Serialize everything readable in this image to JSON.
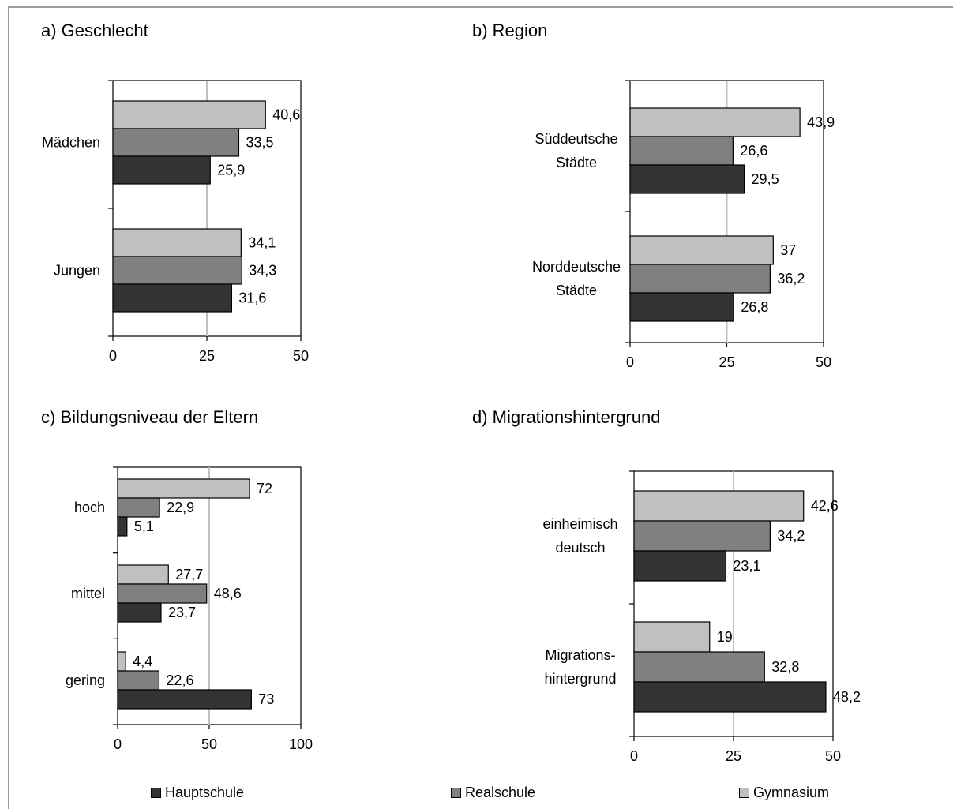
{
  "chart_data": [
    {
      "type": "bar",
      "orientation": "horizontal",
      "title": "a) Geschlecht",
      "categories": [
        "Mädchen",
        "Jungen"
      ],
      "series": [
        {
          "name": "Gymnasium",
          "values": [
            40.6,
            34.1
          ]
        },
        {
          "name": "Realschule",
          "values": [
            33.5,
            34.3
          ]
        },
        {
          "name": "Hauptschule",
          "values": [
            25.9,
            31.6
          ]
        }
      ],
      "value_labels": [
        [
          "40,6",
          "34,1"
        ],
        [
          "33,5",
          "34,3"
        ],
        [
          "25,9",
          "31,6"
        ]
      ],
      "xlim": [
        0,
        50
      ],
      "xticks": [
        "0",
        "25",
        "50"
      ],
      "grid": "vertical line at 25"
    },
    {
      "type": "bar",
      "orientation": "horizontal",
      "title": "b) Region",
      "categories": [
        "Süddeutsche Städte",
        "Norddeutsche Städte"
      ],
      "category_lines": [
        [
          "Süddeutsche",
          "Städte"
        ],
        [
          "Norddeutsche",
          "Städte"
        ]
      ],
      "series": [
        {
          "name": "Gymnasium",
          "values": [
            43.9,
            37
          ]
        },
        {
          "name": "Realschule",
          "values": [
            26.6,
            36.2
          ]
        },
        {
          "name": "Hauptschule",
          "values": [
            29.5,
            26.8
          ]
        }
      ],
      "value_labels": [
        [
          "43,9",
          "37"
        ],
        [
          "26,6",
          "36,2"
        ],
        [
          "29,5",
          "26,8"
        ]
      ],
      "xlim": [
        0,
        50
      ],
      "xticks": [
        "0",
        "25",
        "50"
      ],
      "grid": "vertical line at 25"
    },
    {
      "type": "bar",
      "orientation": "horizontal",
      "title": "c) Bildungsniveau der Eltern",
      "categories": [
        "hoch",
        "mittel",
        "gering"
      ],
      "series": [
        {
          "name": "Gymnasium",
          "values": [
            72,
            27.7,
            4.4
          ]
        },
        {
          "name": "Realschule",
          "values": [
            22.9,
            48.6,
            22.6
          ]
        },
        {
          "name": "Hauptschule",
          "values": [
            5.1,
            23.7,
            73
          ]
        }
      ],
      "value_labels": [
        [
          "72",
          "27,7",
          "4,4"
        ],
        [
          "22,9",
          "48,6",
          "22,6"
        ],
        [
          "5,1",
          "23,7",
          "73"
        ]
      ],
      "xlim": [
        0,
        100
      ],
      "xticks": [
        "0",
        "50",
        "100"
      ],
      "grid": "vertical line at 50"
    },
    {
      "type": "bar",
      "orientation": "horizontal",
      "title": "d) Migrationshintergrund",
      "categories": [
        "einheimisch deutsch",
        "Migrations- hintergrund"
      ],
      "category_lines": [
        [
          "einheimisch",
          "deutsch"
        ],
        [
          "Migrations-",
          "hintergrund"
        ]
      ],
      "series": [
        {
          "name": "Gymnasium",
          "values": [
            42.6,
            19
          ]
        },
        {
          "name": "Realschule",
          "values": [
            34.2,
            32.8
          ]
        },
        {
          "name": "Hauptschule",
          "values": [
            23.1,
            48.2
          ]
        }
      ],
      "value_labels": [
        [
          "42,6",
          "19"
        ],
        [
          "34,2",
          "32,8"
        ],
        [
          "23,1",
          "48,2"
        ]
      ],
      "xlim": [
        0,
        50
      ],
      "xticks": [
        "0",
        "25",
        "50"
      ],
      "grid": "vertical line at 25"
    }
  ],
  "legend": {
    "placement": "bottom",
    "items": [
      {
        "label": "Hauptschule",
        "color": "#333333"
      },
      {
        "label": "Realschule",
        "color": "#808080"
      },
      {
        "label": "Gymnasium",
        "color": "#c0c0c0"
      }
    ]
  },
  "colors": {
    "Gymnasium": "#c0c0c0",
    "Realschule": "#808080",
    "Hauptschule": "#333333",
    "gridline": "#c0c0c0",
    "frame": "#9a9a9a"
  }
}
